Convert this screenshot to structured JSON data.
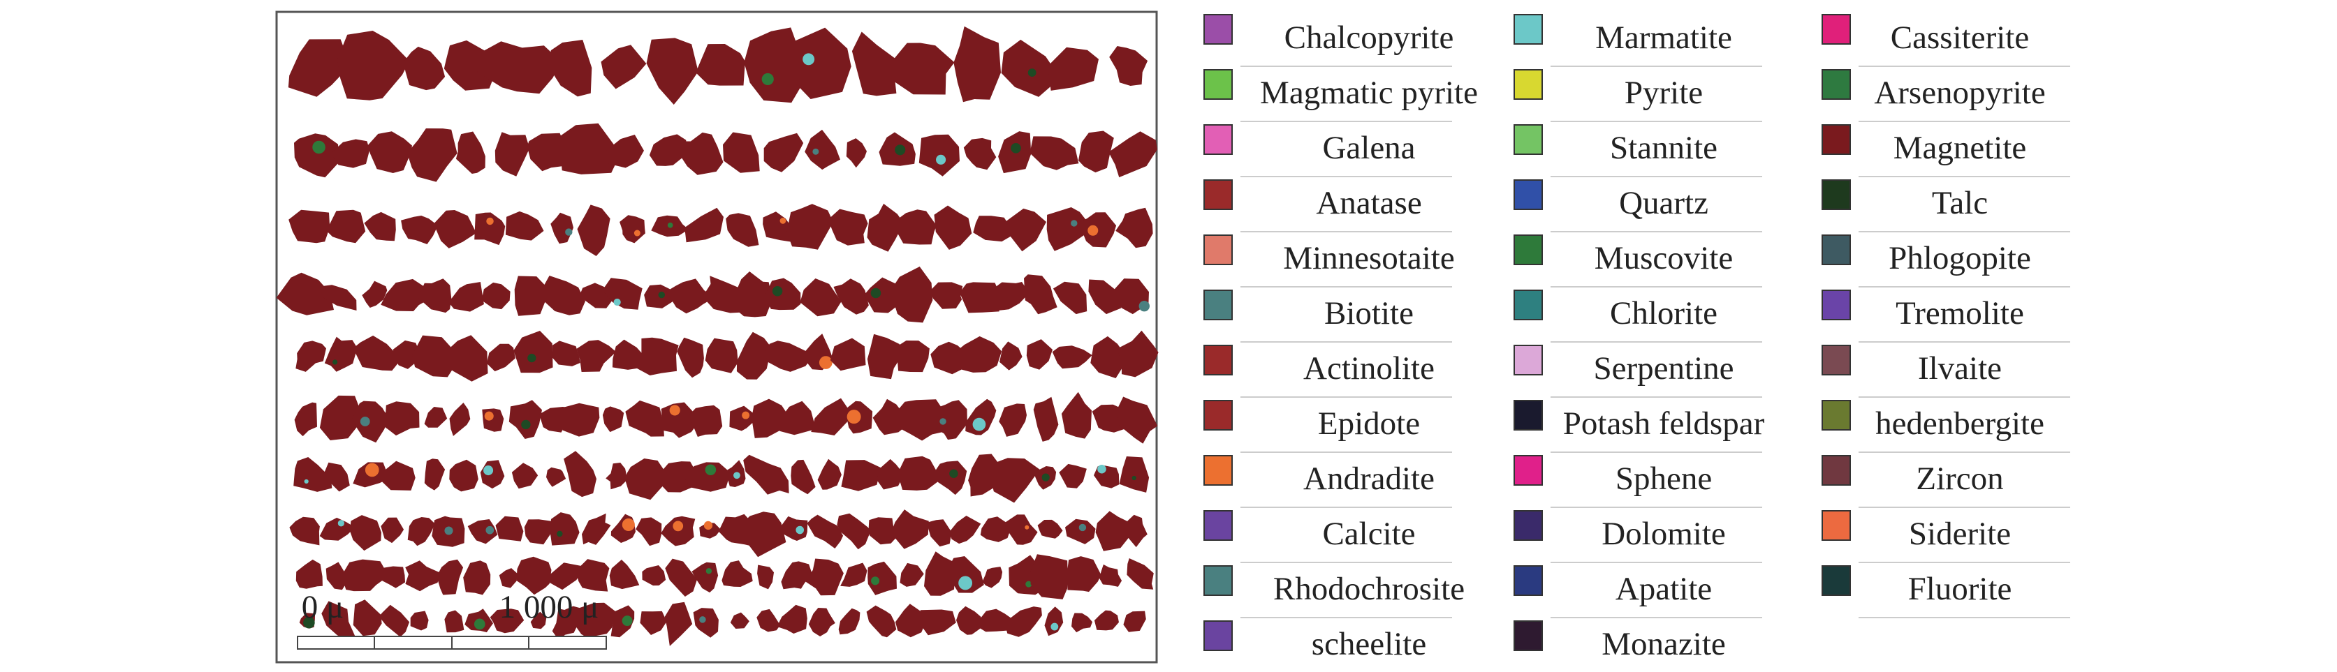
{
  "legend": {
    "columns": [
      [
        {
          "name": "Chalcopyrite",
          "color": "#9b4ea8"
        },
        {
          "name": "Magmatic pyrite",
          "color": "#6cc24a"
        },
        {
          "name": "Galena",
          "color": "#e25fb5"
        },
        {
          "name": "Anatase",
          "color": "#9a2a2a"
        },
        {
          "name": "Minnesotaite",
          "color": "#e07a6a"
        },
        {
          "name": "Biotite",
          "color": "#4a8080"
        },
        {
          "name": "Actinolite",
          "color": "#9a2a2a"
        },
        {
          "name": "Epidote",
          "color": "#9a2a2a"
        },
        {
          "name": "Andradite",
          "color": "#ec7030"
        },
        {
          "name": "Calcite",
          "color": "#6a44a0"
        },
        {
          "name": "Rhodochrosite",
          "color": "#4a8080"
        },
        {
          "name": "scheelite",
          "color": "#6a44a0"
        }
      ],
      [
        {
          "name": "Marmatite",
          "color": "#6cc8c8"
        },
        {
          "name": "Pyrite",
          "color": "#d8d830"
        },
        {
          "name": "Stannite",
          "color": "#74c464"
        },
        {
          "name": "Quartz",
          "color": "#3050a8"
        },
        {
          "name": "Muscovite",
          "color": "#2e7a3a"
        },
        {
          "name": "Chlorite",
          "color": "#2e8080"
        },
        {
          "name": "Serpentine",
          "color": "#dca8d8"
        },
        {
          "name": "Potash feldspar",
          "color": "#1a1a2e"
        },
        {
          "name": "Sphene",
          "color": "#e0208a"
        },
        {
          "name": "Dolomite",
          "color": "#3a2a6a"
        },
        {
          "name": "Apatite",
          "color": "#2a3a80"
        },
        {
          "name": "Monazite",
          "color": "#2e1a30"
        }
      ],
      [
        {
          "name": "Cassiterite",
          "color": "#e0207a"
        },
        {
          "name": "Arsenopyrite",
          "color": "#2e7a40"
        },
        {
          "name": "Magnetite",
          "color": "#7a1a1e"
        },
        {
          "name": "Talc",
          "color": "#1e3a1e"
        },
        {
          "name": "Phlogopite",
          "color": "#3e5a62"
        },
        {
          "name": "Tremolite",
          "color": "#6a44a8"
        },
        {
          "name": "Ilvaite",
          "color": "#7a4a52"
        },
        {
          "name": "hedenbergite",
          "color": "#6a7a30"
        },
        {
          "name": "Zircon",
          "color": "#703840"
        },
        {
          "name": "Siderite",
          "color": "#ec6a40"
        },
        {
          "name": "Fluorite",
          "color": "#1a3a3a"
        }
      ]
    ]
  },
  "scale_bar": {
    "start": "0 μ",
    "end": "1 000 μ"
  }
}
